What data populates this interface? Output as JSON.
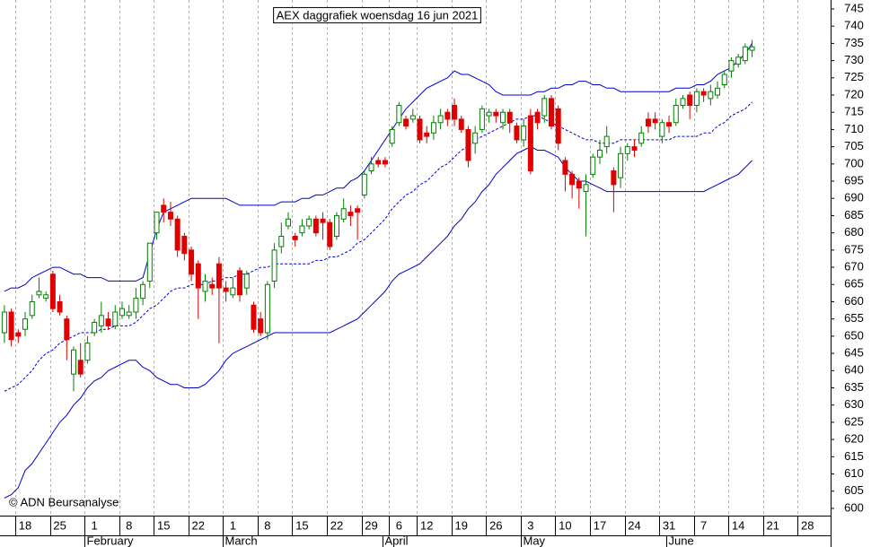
{
  "chart_data": {
    "type": "candlestick",
    "title": "AEX daggrafiek woensdag 16 jun 2021",
    "copyright": "© ADN Beursanalyse",
    "up_color": "#008000",
    "down_color": "#e00000",
    "band_color": "#0000cc",
    "ylim": [
      597.9,
      747.6
    ],
    "yticks": [
      600,
      605,
      610,
      615,
      620,
      625,
      630,
      635,
      640,
      645,
      650,
      655,
      660,
      665,
      670,
      675,
      680,
      685,
      690,
      695,
      700,
      705,
      710,
      715,
      720,
      725,
      730,
      735,
      740,
      745
    ],
    "months": [
      "February",
      "March",
      "April",
      "May",
      "June"
    ],
    "categories": [
      null,
      null,
      null,
      "18",
      null,
      null,
      null,
      null,
      "25",
      null,
      null,
      null,
      null,
      "1",
      null,
      null,
      null,
      null,
      "8",
      null,
      null,
      null,
      null,
      "15",
      null,
      null,
      null,
      null,
      "22",
      null,
      null,
      null,
      null,
      "1",
      null,
      null,
      null,
      null,
      "8",
      null,
      null,
      null,
      null,
      "15",
      null,
      null,
      null,
      null,
      "22",
      null,
      null,
      null,
      null,
      "29",
      null,
      null,
      null,
      "6",
      null,
      null,
      null,
      "12",
      null,
      null,
      null,
      null,
      "19",
      null,
      null,
      null,
      null,
      "26",
      null,
      null,
      null,
      null,
      "3",
      null,
      null,
      null,
      null,
      "10",
      null,
      null,
      null,
      null,
      "17",
      null,
      null,
      null,
      null,
      "24",
      null,
      null,
      null,
      null,
      "31",
      null,
      null,
      null,
      null,
      "7",
      null,
      null,
      null,
      null,
      "14",
      null,
      null,
      null,
      null,
      "21",
      null,
      null,
      null,
      null,
      "28",
      null,
      null
    ],
    "candles": {
      "open": [
        651,
        657,
        651,
        652,
        656,
        662,
        661,
        668,
        660,
        655,
        639,
        643,
        643,
        651,
        653,
        655,
        653,
        656,
        656,
        657,
        661,
        666,
        680,
        688,
        686,
        684,
        679,
        675,
        671,
        663,
        665,
        671,
        664,
        662,
        669,
        664,
        659,
        655,
        651,
        666,
        676,
        682,
        679,
        680,
        682,
        684,
        684,
        683,
        679,
        684,
        686,
        687,
        691,
        698,
        701,
        701,
        706,
        712,
        713,
        713,
        713,
        709,
        709,
        712,
        715,
        717,
        713,
        710,
        706,
        710,
        714,
        715,
        712,
        715,
        711,
        707,
        714,
        715,
        714,
        719,
        716,
        701,
        697,
        695,
        692,
        697,
        702,
        705,
        698,
        696,
        703,
        705,
        706,
        713,
        713,
        708,
        712,
        712,
        717,
        720,
        717,
        721,
        719,
        720,
        723,
        727,
        729,
        730,
        733,
        null,
        null,
        null,
        null,
        null,
        null,
        null,
        null,
        null,
        null
      ],
      "high": [
        659,
        658,
        652,
        657,
        662,
        667,
        663,
        669,
        662,
        656,
        647,
        648,
        650,
        655,
        660,
        657,
        659,
        660,
        659,
        664,
        666,
        677,
        686,
        690,
        689,
        685,
        680,
        676,
        672,
        668,
        667,
        673,
        666,
        667,
        670,
        669,
        660,
        657,
        666,
        677,
        683,
        686,
        680,
        684,
        685,
        685,
        686,
        684,
        686,
        690,
        688,
        688,
        698,
        702,
        702,
        702,
        711,
        718,
        714,
        716,
        714,
        711,
        714,
        716,
        716,
        719,
        714,
        711,
        711,
        717,
        716,
        716,
        716,
        716,
        712,
        713,
        716,
        716,
        720,
        720,
        717,
        702,
        698,
        696,
        697,
        703,
        707,
        711,
        699,
        705,
        706,
        707,
        711,
        715,
        715,
        713,
        714,
        719,
        720,
        721,
        722,
        722,
        723,
        724,
        727,
        731,
        732,
        735,
        736,
        null,
        null,
        null,
        null,
        null,
        null,
        null,
        null,
        null,
        null
      ],
      "low": [
        648,
        647,
        648,
        650,
        655,
        661,
        660,
        657,
        656,
        643,
        634,
        638,
        642,
        650,
        651,
        652,
        652,
        655,
        655,
        655,
        659,
        664,
        678,
        683,
        682,
        673,
        672,
        666,
        655,
        660,
        662,
        648,
        660,
        661,
        660,
        662,
        651,
        650,
        649,
        664,
        674,
        681,
        676,
        679,
        681,
        679,
        678,
        675,
        678,
        683,
        682,
        678,
        690,
        697,
        699,
        699,
        705,
        711,
        710,
        712,
        706,
        706,
        707,
        710,
        711,
        711,
        709,
        699,
        703,
        709,
        712,
        712,
        710,
        709,
        706,
        705,
        697,
        710,
        712,
        710,
        704,
        692,
        690,
        687,
        679,
        696,
        700,
        703,
        686,
        693,
        701,
        702,
        705,
        709,
        710,
        706,
        709,
        711,
        716,
        713,
        715,
        718,
        717,
        719,
        722,
        725,
        728,
        729,
        731,
        null,
        null,
        null,
        null,
        null,
        null,
        null,
        null,
        null,
        null
      ],
      "close": [
        657,
        649,
        650,
        655,
        660,
        663,
        662,
        658,
        657,
        649,
        646,
        639,
        648,
        654,
        656,
        653,
        657,
        658,
        657,
        661,
        665,
        677,
        686,
        686,
        684,
        675,
        674,
        668,
        664,
        666,
        664,
        664,
        663,
        664,
        662,
        668,
        652,
        651,
        665,
        675,
        679,
        684,
        678,
        682,
        684,
        680,
        683,
        676,
        685,
        687,
        685,
        686,
        697,
        700,
        700,
        700,
        710,
        717,
        711,
        714,
        707,
        708,
        712,
        714,
        713,
        713,
        710,
        701,
        709,
        716,
        715,
        714,
        715,
        712,
        707,
        711,
        698,
        712,
        719,
        711,
        706,
        697,
        694,
        693,
        694,
        702,
        704,
        708,
        694,
        703,
        705,
        704,
        709,
        711,
        712,
        712,
        711,
        717,
        719,
        717,
        721,
        720,
        721,
        722,
        726,
        730,
        731,
        734,
        734,
        null,
        null,
        null,
        null,
        null,
        null,
        null,
        null,
        null,
        null
      ]
    },
    "bands": {
      "upper": [
        663,
        664,
        664,
        665,
        667,
        668,
        669,
        670,
        670,
        669,
        668,
        668,
        667,
        667,
        667,
        666,
        666,
        666,
        666,
        666,
        667,
        674,
        681,
        686,
        687,
        688,
        689,
        690,
        690,
        690,
        690,
        690,
        690,
        689,
        688,
        688,
        688,
        688,
        688,
        688,
        689,
        689,
        689,
        690,
        690,
        691,
        691,
        692,
        693,
        693,
        695,
        696,
        698,
        701,
        704,
        707,
        710,
        713,
        716,
        718,
        720,
        722,
        723,
        724,
        725,
        727,
        726,
        726,
        725,
        724,
        723,
        721,
        720,
        720,
        720,
        720,
        720,
        721,
        721,
        722,
        722,
        723,
        723,
        724,
        724,
        723,
        723,
        722,
        722,
        721,
        721,
        721,
        721,
        721,
        721,
        721,
        721,
        722,
        722,
        722,
        723,
        723,
        724,
        726,
        727,
        728,
        730,
        732,
        735,
        null,
        null,
        null,
        null,
        null,
        null,
        null,
        null,
        null,
        null
      ],
      "middle": [
        634,
        635,
        636,
        638,
        640,
        643,
        645,
        646,
        648,
        649,
        650,
        651,
        651,
        651,
        652,
        652,
        653,
        653,
        653,
        654,
        656,
        658,
        659,
        661,
        663,
        664,
        664,
        665,
        665,
        665,
        666,
        666,
        667,
        667,
        668,
        668,
        669,
        670,
        670,
        671,
        671,
        671,
        671,
        671,
        671,
        672,
        672,
        673,
        673,
        674,
        675,
        677,
        678,
        680,
        682,
        684,
        687,
        689,
        691,
        692,
        694,
        695,
        697,
        699,
        700,
        702,
        704,
        705,
        707,
        708,
        709,
        710,
        711,
        712,
        713,
        713,
        714,
        714,
        713,
        712,
        711,
        710,
        709,
        708,
        707,
        707,
        706,
        706,
        706,
        707,
        707,
        707,
        707,
        707,
        707,
        707,
        707,
        708,
        708,
        708,
        708,
        709,
        709,
        711,
        712,
        714,
        715,
        716,
        718,
        null,
        null,
        null,
        null,
        null,
        null,
        null,
        null,
        null,
        null
      ],
      "lower": [
        603,
        604,
        606,
        611,
        613,
        616,
        619,
        622,
        625,
        627,
        630,
        632,
        635,
        637,
        638,
        640,
        641,
        642,
        643,
        643,
        641,
        640,
        638,
        637,
        636,
        636,
        635,
        635,
        635,
        636,
        638,
        640,
        643,
        645,
        646,
        647,
        648,
        649,
        650,
        651,
        651,
        651,
        651,
        651,
        651,
        651,
        651,
        651,
        652,
        653,
        654,
        655,
        657,
        659,
        661,
        663,
        666,
        668,
        669,
        670,
        671,
        673,
        675,
        677,
        679,
        682,
        684,
        687,
        689,
        692,
        694,
        697,
        699,
        701,
        703,
        704,
        705,
        704,
        704,
        703,
        702,
        699,
        697,
        695,
        695,
        694,
        693,
        692,
        692,
        692,
        692,
        692,
        692,
        692,
        692,
        692,
        692,
        692,
        692,
        692,
        692,
        692,
        693,
        694,
        695,
        696,
        697,
        699,
        701,
        null,
        null,
        null,
        null,
        null,
        null,
        null,
        null,
        null,
        null
      ]
    }
  }
}
